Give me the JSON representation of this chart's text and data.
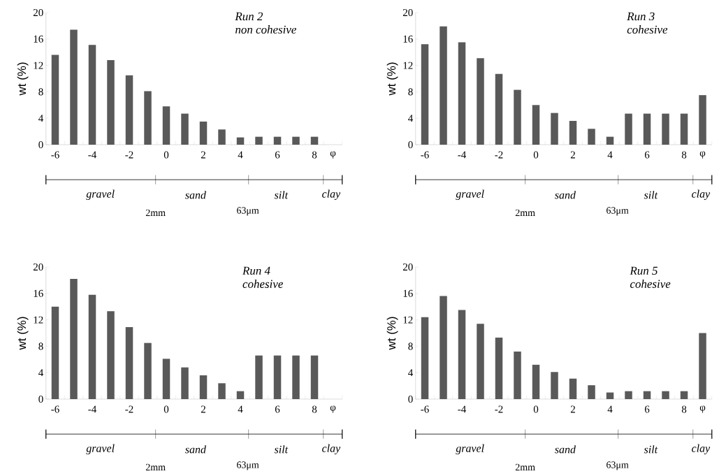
{
  "chart_data": [
    {
      "type": "bar",
      "title": "Run 2",
      "subtitle": "non cohesive",
      "ylabel": "wt (%)",
      "categories": [
        "-6",
        null,
        "-4",
        null,
        "-2",
        null,
        "0",
        null,
        "2",
        null,
        "4",
        null,
        "6",
        null,
        "8",
        "φ"
      ],
      "values": [
        13.6,
        17.4,
        15.1,
        12.8,
        10.5,
        8.1,
        5.8,
        4.7,
        3.5,
        2.3,
        1.1,
        1.2,
        1.2,
        1.2,
        1.2,
        null
      ],
      "color": "#595959",
      "ylim": [
        0,
        20
      ],
      "yticks": [
        0,
        4,
        8,
        12,
        16,
        20
      ],
      "annotations": [
        "gravel",
        "sand",
        "silt",
        "clay",
        "2mm",
        "63μm"
      ]
    },
    {
      "type": "bar",
      "title": "Run 3",
      "subtitle": "cohesive",
      "ylabel": "wt (%)",
      "categories": [
        "-6",
        null,
        "-4",
        null,
        "-2",
        null,
        "0",
        null,
        "2",
        null,
        "4",
        null,
        "6",
        null,
        "8",
        "φ"
      ],
      "values": [
        15.2,
        17.9,
        15.5,
        13.1,
        10.7,
        8.3,
        6.0,
        4.8,
        3.6,
        2.4,
        1.2,
        4.7,
        4.7,
        4.7,
        4.7,
        7.5
      ],
      "color": "#595959",
      "ylim": [
        0,
        20
      ],
      "yticks": [
        0,
        4,
        8,
        12,
        16,
        20
      ],
      "annotations": [
        "gravel",
        "sand",
        "silt",
        "clay",
        "2mm",
        "63μm"
      ]
    },
    {
      "type": "bar",
      "title": "Run 4",
      "subtitle": "cohesive",
      "ylabel": "wt (%)",
      "categories": [
        "-6",
        null,
        "-4",
        null,
        "-2",
        null,
        "0",
        null,
        "2",
        null,
        "4",
        null,
        "6",
        null,
        "8",
        "φ"
      ],
      "values": [
        14.0,
        18.2,
        15.8,
        13.3,
        10.9,
        8.5,
        6.1,
        4.8,
        3.6,
        2.4,
        1.2,
        6.6,
        6.6,
        6.6,
        6.6,
        null
      ],
      "color": "#595959",
      "ylim": [
        0,
        20
      ],
      "yticks": [
        0,
        4,
        8,
        12,
        16,
        20
      ],
      "annotations": [
        "gravel",
        "sand",
        "silt",
        "clay",
        "2mm",
        "63μm"
      ]
    },
    {
      "type": "bar",
      "title": "Run 5",
      "subtitle": "cohesive",
      "ylabel": "wt (%)",
      "categories": [
        "-6",
        null,
        "-4",
        null,
        "-2",
        null,
        "0",
        null,
        "2",
        null,
        "4",
        null,
        "6",
        null,
        "8",
        "φ"
      ],
      "values": [
        12.4,
        15.6,
        13.5,
        11.4,
        9.3,
        7.2,
        5.2,
        4.1,
        3.1,
        2.1,
        1.0,
        1.2,
        1.2,
        1.2,
        1.2,
        10.0
      ],
      "color": "#595959",
      "ylim": [
        0,
        20
      ],
      "yticks": [
        0,
        4,
        8,
        12,
        16,
        20
      ],
      "annotations": [
        "gravel",
        "sand",
        "silt",
        "clay",
        "2mm",
        "63μm"
      ]
    }
  ]
}
